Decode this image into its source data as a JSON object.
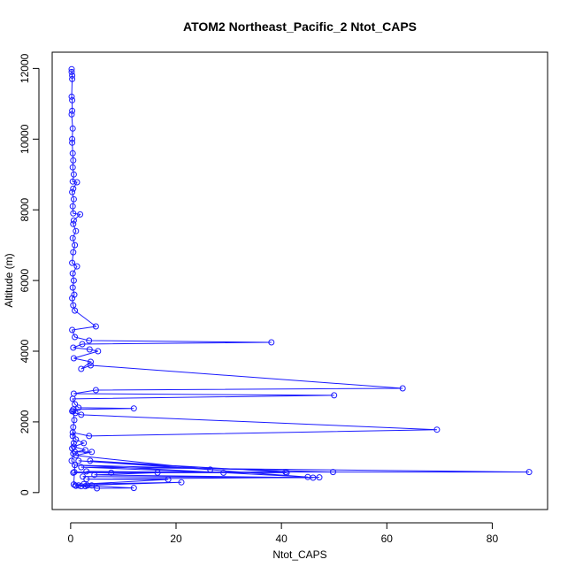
{
  "chart_data": {
    "type": "line",
    "title": "ATOM2 Northeast_Pacific_2 Ntot_CAPS",
    "xlabel": "Ntot_CAPS",
    "ylabel": "Altitude (m)",
    "xlim": [
      -3.5,
      90.5
    ],
    "ylim": [
      -480,
      12460
    ],
    "xticks": [
      0,
      20,
      40,
      60,
      80
    ],
    "yticks": [
      0,
      2000,
      4000,
      6000,
      8000,
      10000,
      12000
    ],
    "markers": "open-circle",
    "line_color": "#1a1aff",
    "grid": false,
    "legend": "none",
    "series": [
      {
        "points": [
          [
            0.2,
            11980
          ],
          [
            0.2,
            11900
          ],
          [
            0.3,
            11800
          ],
          [
            0.3,
            11700
          ],
          [
            0.2,
            11200
          ],
          [
            0.3,
            11100
          ],
          [
            0.3,
            10800
          ],
          [
            0.2,
            10700
          ],
          [
            0.4,
            10300
          ],
          [
            0.3,
            10000
          ],
          [
            0.3,
            9900
          ],
          [
            0.4,
            9600
          ],
          [
            0.5,
            9400
          ],
          [
            0.4,
            9200
          ],
          [
            0.6,
            9000
          ],
          [
            0.4,
            8800
          ],
          [
            1.2,
            8780
          ],
          [
            0.5,
            8600
          ],
          [
            0.3,
            8500
          ],
          [
            0.6,
            8300
          ],
          [
            0.4,
            8100
          ],
          [
            0.5,
            7900
          ],
          [
            1.8,
            7870
          ],
          [
            0.6,
            7700
          ],
          [
            0.5,
            7600
          ],
          [
            1.0,
            7400
          ],
          [
            0.4,
            7200
          ],
          [
            0.8,
            7000
          ],
          [
            0.5,
            6800
          ],
          [
            0.3,
            6500
          ],
          [
            1.2,
            6400
          ],
          [
            0.4,
            6200
          ],
          [
            0.6,
            6000
          ],
          [
            0.4,
            5800
          ],
          [
            0.7,
            5600
          ],
          [
            0.3,
            5500
          ],
          [
            0.5,
            5300
          ],
          [
            0.8,
            5150
          ],
          [
            4.8,
            4700
          ],
          [
            0.3,
            4600
          ],
          [
            0.8,
            4400
          ],
          [
            3.5,
            4300
          ],
          [
            38.1,
            4250
          ],
          [
            2.2,
            4200
          ],
          [
            0.5,
            4100
          ],
          [
            3.6,
            4050
          ],
          [
            5.2,
            4000
          ],
          [
            0.6,
            3800
          ],
          [
            3.8,
            3700
          ],
          [
            2.0,
            3500
          ],
          [
            3.8,
            3600
          ],
          [
            63.0,
            2950
          ],
          [
            4.8,
            2900
          ],
          [
            0.6,
            2800
          ],
          [
            50.0,
            2750
          ],
          [
            0.4,
            2650
          ],
          [
            0.8,
            2500
          ],
          [
            1.5,
            2400
          ],
          [
            12.0,
            2380
          ],
          [
            0.5,
            2350
          ],
          [
            0.3,
            2300
          ],
          [
            0.9,
            2250
          ],
          [
            2.0,
            2200
          ],
          [
            69.5,
            1780
          ],
          [
            3.5,
            1600
          ],
          [
            0.4,
            1700
          ],
          [
            1.0,
            1500
          ],
          [
            2.5,
            1400
          ],
          [
            0.6,
            1300
          ],
          [
            2.8,
            1200
          ],
          [
            0.8,
            1150
          ],
          [
            4.0,
            1150
          ],
          [
            1.0,
            1050
          ],
          [
            26.5,
            650
          ],
          [
            1.5,
            900
          ],
          [
            40.8,
            580
          ],
          [
            3.7,
            900
          ],
          [
            45.0,
            440
          ],
          [
            0.8,
            780
          ],
          [
            49.8,
            580
          ],
          [
            0.7,
            580
          ],
          [
            87.0,
            580
          ],
          [
            2.0,
            720
          ],
          [
            29.0,
            560
          ],
          [
            3.0,
            600
          ],
          [
            41.0,
            560
          ],
          [
            7.7,
            560
          ],
          [
            0.5,
            560
          ],
          [
            16.5,
            560
          ],
          [
            4.5,
            500
          ],
          [
            46.0,
            420
          ],
          [
            2.3,
            450
          ],
          [
            47.2,
            430
          ],
          [
            3.0,
            380
          ],
          [
            18.5,
            370
          ],
          [
            2.5,
            240
          ],
          [
            21.0,
            290
          ],
          [
            1.5,
            200
          ],
          [
            12.0,
            130
          ],
          [
            5.0,
            120
          ],
          [
            2.0,
            180
          ],
          [
            4.0,
            200
          ],
          [
            0.9,
            200
          ],
          [
            2.8,
            180
          ],
          [
            1.0,
            190
          ],
          [
            3.2,
            200
          ],
          [
            0.6,
            230
          ],
          [
            0.8,
            780
          ],
          [
            0.2,
            900
          ],
          [
            0.5,
            1100
          ],
          [
            0.3,
            1250
          ],
          [
            0.6,
            1400
          ],
          [
            0.4,
            1600
          ],
          [
            0.5,
            1850
          ],
          [
            0.7,
            2050
          ],
          [
            0.5,
            2300
          ]
        ]
      }
    ]
  }
}
